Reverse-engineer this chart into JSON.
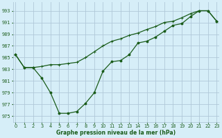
{
  "title": "Graphe pression niveau de la mer (hPa)",
  "background_color": "#d6eef8",
  "grid_color": "#b0c8d8",
  "line_color": "#1a5c1a",
  "x_ticks": [
    0,
    1,
    2,
    3,
    4,
    5,
    6,
    7,
    8,
    9,
    10,
    11,
    12,
    13,
    14,
    15,
    16,
    17,
    18,
    19,
    20,
    21,
    22,
    23
  ],
  "y_ticks": [
    975,
    977,
    979,
    981,
    983,
    985,
    987,
    989,
    991,
    993
  ],
  "ylim": [
    974.0,
    994.5
  ],
  "xlim": [
    -0.3,
    23.3
  ],
  "line1_x": [
    0,
    1,
    2,
    3,
    4,
    5,
    6,
    7,
    8,
    9,
    10,
    11,
    12,
    13,
    14,
    15,
    16,
    17,
    18,
    19,
    20,
    21,
    22,
    23
  ],
  "line1_y": [
    985.5,
    983.3,
    983.3,
    981.5,
    979.0,
    975.5,
    975.5,
    975.8,
    977.2,
    979.0,
    982.7,
    984.3,
    984.5,
    985.5,
    987.5,
    987.8,
    988.5,
    989.5,
    990.5,
    990.8,
    992.0,
    993.0,
    993.0,
    991.2
  ],
  "line2_x": [
    0,
    1,
    2,
    3,
    4,
    5,
    6,
    7,
    8,
    9,
    10,
    11,
    12,
    13,
    14,
    15,
    16,
    17,
    18,
    19,
    20,
    21,
    22,
    23
  ],
  "line2_y": [
    985.5,
    983.3,
    983.3,
    983.5,
    983.8,
    983.8,
    984.0,
    984.2,
    985.0,
    986.0,
    987.0,
    987.8,
    988.2,
    988.8,
    989.2,
    989.8,
    990.3,
    991.0,
    991.2,
    991.8,
    992.5,
    993.0,
    993.0,
    991.2
  ],
  "title_fontsize": 5.5,
  "tick_fontsize": 4.8
}
